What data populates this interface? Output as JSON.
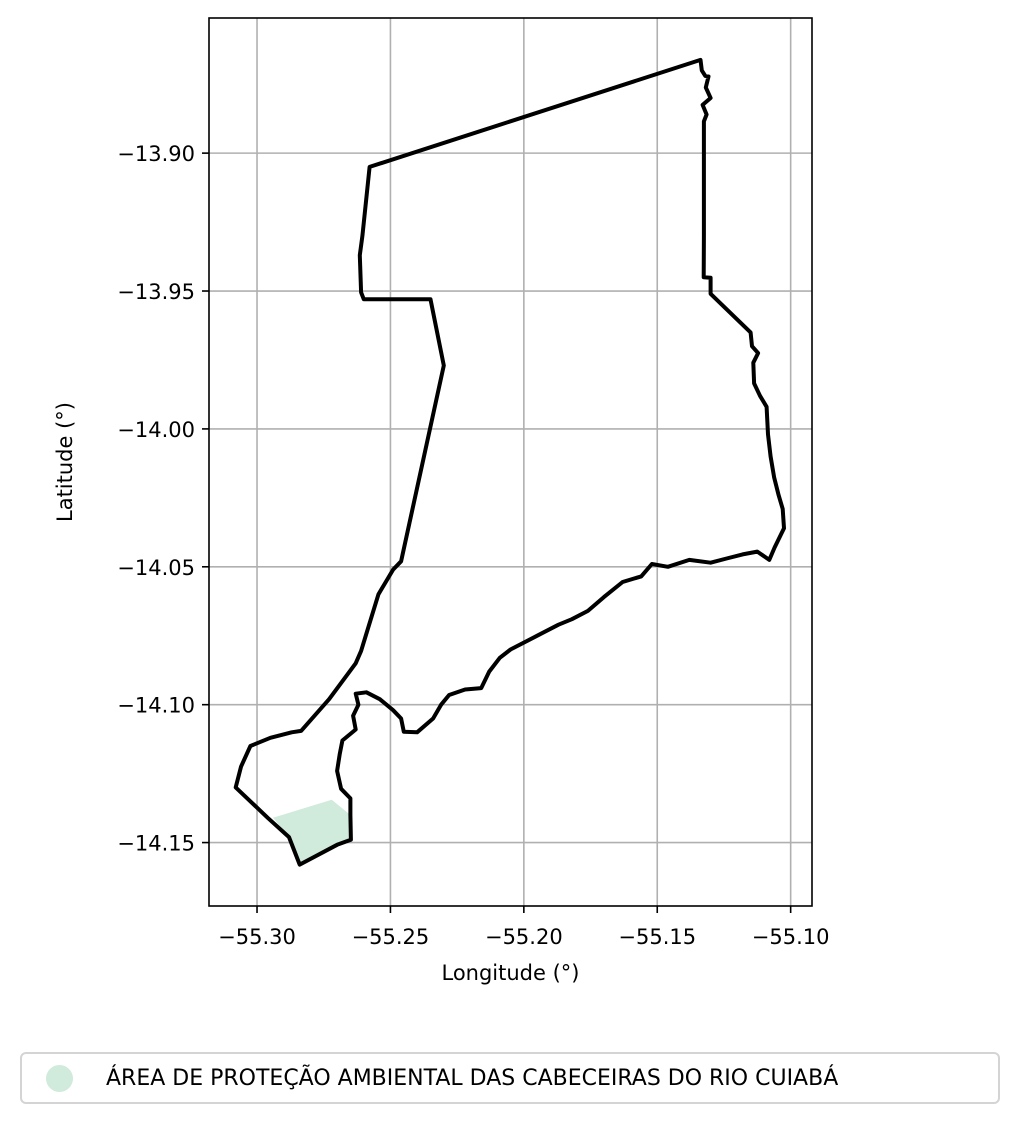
{
  "chart_data": {
    "type": "map",
    "xlabel": "Longitude (°)",
    "ylabel": "Latitude (°)",
    "xlim": [
      -55.318,
      -55.092
    ],
    "ylim": [
      -14.173,
      -13.851
    ],
    "x_ticks": [
      -55.3,
      -55.25,
      -55.2,
      -55.15,
      -55.1
    ],
    "x_tick_labels": [
      "−55.30",
      "−55.25",
      "−55.20",
      "−55.15",
      "−55.10"
    ],
    "y_ticks": [
      -13.9,
      -13.95,
      -14.0,
      -14.05,
      -14.1,
      -14.15
    ],
    "y_tick_labels": [
      "−13.90",
      "−13.95",
      "−14.00",
      "−14.05",
      "−14.10",
      "−14.15"
    ],
    "grid": true,
    "legend_position": "bottom-center",
    "boundary_color": "#000000",
    "fill_color": "#d0eadc",
    "legend": [
      {
        "label": "ÁREA DE PROTEÇÃO AMBIENTAL DAS CABECEIRAS DO RIO CUIABÁ",
        "color": "#d0eadc"
      }
    ],
    "boundary": [
      [
        -55.1338,
        -13.8662
      ],
      [
        -55.1333,
        -13.87
      ],
      [
        -55.132,
        -13.872
      ],
      [
        -55.1308,
        -13.8722
      ],
      [
        -55.1318,
        -13.8762
      ],
      [
        -55.13,
        -13.88
      ],
      [
        -55.133,
        -13.8825
      ],
      [
        -55.1315,
        -13.886
      ],
      [
        -55.1325,
        -13.8885
      ],
      [
        -55.1325,
        -13.93
      ],
      [
        -55.1326,
        -13.945
      ],
      [
        -55.13,
        -13.9452
      ],
      [
        -55.13,
        -13.951
      ],
      [
        -55.115,
        -13.965
      ],
      [
        -55.1145,
        -13.97
      ],
      [
        -55.1122,
        -13.9725
      ],
      [
        -55.114,
        -13.976
      ],
      [
        -55.1137,
        -13.9835
      ],
      [
        -55.1115,
        -13.988
      ],
      [
        -55.109,
        -13.992
      ],
      [
        -55.1085,
        -14.002
      ],
      [
        -55.1075,
        -14.01
      ],
      [
        -55.1062,
        -14.0175
      ],
      [
        -55.1045,
        -14.024
      ],
      [
        -55.103,
        -14.029
      ],
      [
        -55.1025,
        -14.036
      ],
      [
        -55.106,
        -14.043
      ],
      [
        -55.108,
        -14.0475
      ],
      [
        -55.1125,
        -14.0445
      ],
      [
        -55.118,
        -14.0455
      ],
      [
        -55.124,
        -14.047
      ],
      [
        -55.13,
        -14.0485
      ],
      [
        -55.138,
        -14.0475
      ],
      [
        -55.146,
        -14.05
      ],
      [
        -55.152,
        -14.049
      ],
      [
        -55.156,
        -14.0535
      ],
      [
        -55.163,
        -14.0555
      ],
      [
        -55.17,
        -14.061
      ],
      [
        -55.176,
        -14.066
      ],
      [
        -55.182,
        -14.069
      ],
      [
        -55.187,
        -14.071
      ],
      [
        -55.195,
        -14.075
      ],
      [
        -55.205,
        -14.08
      ],
      [
        -55.209,
        -14.083
      ],
      [
        -55.213,
        -14.088
      ],
      [
        -55.216,
        -14.094
      ],
      [
        -55.222,
        -14.0945
      ],
      [
        -55.228,
        -14.0965
      ],
      [
        -55.231,
        -14.1
      ],
      [
        -55.234,
        -14.105
      ],
      [
        -55.24,
        -14.11
      ],
      [
        -55.245,
        -14.1098
      ],
      [
        -55.246,
        -14.105
      ],
      [
        -55.249,
        -14.102
      ],
      [
        -55.254,
        -14.098
      ],
      [
        -55.259,
        -14.0955
      ],
      [
        -55.263,
        -14.096
      ],
      [
        -55.262,
        -14.1
      ],
      [
        -55.264,
        -14.104
      ],
      [
        -55.263,
        -14.109
      ],
      [
        -55.268,
        -14.113
      ],
      [
        -55.269,
        -14.118
      ],
      [
        -55.27,
        -14.124
      ],
      [
        -55.2685,
        -14.1305
      ],
      [
        -55.265,
        -14.134
      ],
      [
        -55.265,
        -14.14
      ],
      [
        -55.2648,
        -14.149
      ],
      [
        -55.27,
        -14.1508
      ],
      [
        -55.284,
        -14.158
      ],
      [
        -55.288,
        -14.148
      ],
      [
        -55.296,
        -14.141
      ],
      [
        -55.308,
        -14.13
      ],
      [
        -55.306,
        -14.1225
      ],
      [
        -55.3025,
        -14.115
      ],
      [
        -55.295,
        -14.112
      ],
      [
        -55.287,
        -14.11
      ],
      [
        -55.2835,
        -14.1095
      ],
      [
        -55.273,
        -14.098
      ],
      [
        -55.263,
        -14.085
      ],
      [
        -55.261,
        -14.0805
      ],
      [
        -55.2545,
        -14.06
      ],
      [
        -55.249,
        -14.051
      ],
      [
        -55.246,
        -14.048
      ],
      [
        -55.23,
        -13.977
      ],
      [
        -55.235,
        -13.953
      ],
      [
        -55.246,
        -13.953
      ],
      [
        -55.26,
        -13.953
      ],
      [
        -55.261,
        -13.9505
      ],
      [
        -55.2615,
        -13.937
      ],
      [
        -55.2605,
        -13.93
      ],
      [
        -55.2578,
        -13.905
      ],
      [
        -55.1338,
        -13.8662
      ]
    ],
    "filled_region": [
      [
        -55.294,
        -14.141
      ],
      [
        -55.272,
        -14.1345
      ],
      [
        -55.265,
        -14.14
      ],
      [
        -55.2648,
        -14.149
      ],
      [
        -55.27,
        -14.1508
      ],
      [
        -55.284,
        -14.158
      ],
      [
        -55.288,
        -14.148
      ],
      [
        -55.294,
        -14.141
      ]
    ]
  }
}
